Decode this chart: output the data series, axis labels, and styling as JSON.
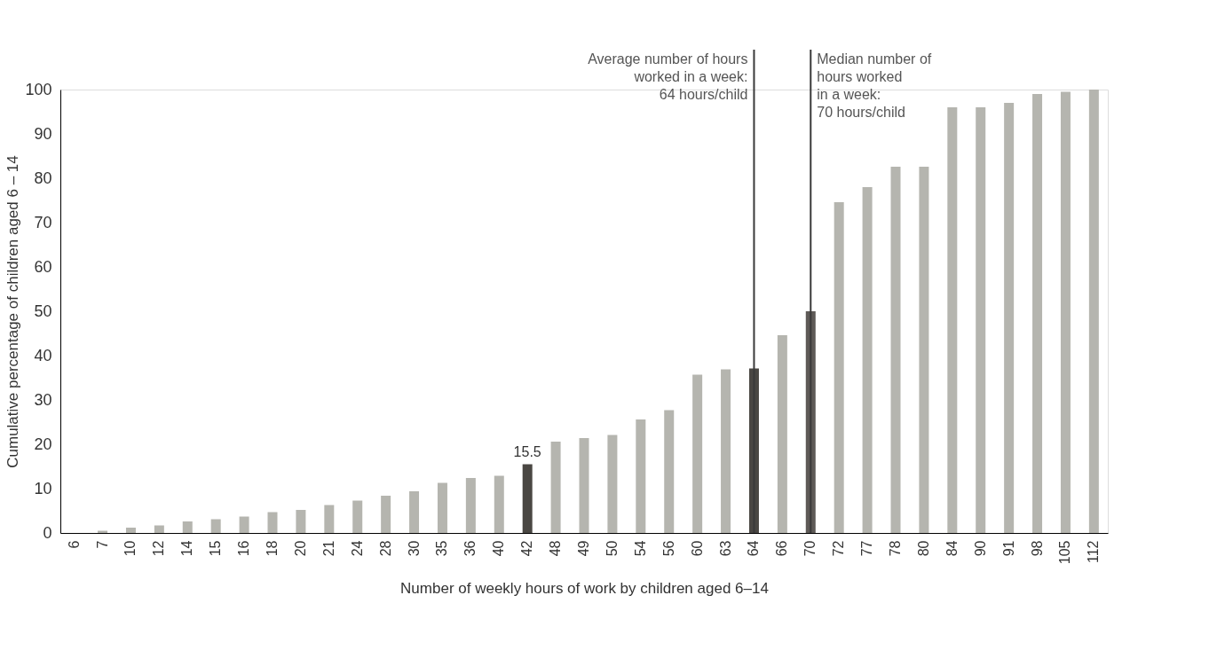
{
  "chart_data": {
    "type": "bar",
    "xlabel": "Number of weekly hours of work by children aged 6–14",
    "ylabel": "Cumulative percentage of children aged 6 – 14",
    "categories": [
      "6",
      "7",
      "10",
      "12",
      "14",
      "15",
      "16",
      "18",
      "20",
      "21",
      "24",
      "28",
      "30",
      "35",
      "36",
      "40",
      "42",
      "48",
      "49",
      "50",
      "54",
      "56",
      "60",
      "63",
      "64",
      "66",
      "70",
      "72",
      "77",
      "78",
      "80",
      "84",
      "90",
      "91",
      "98",
      "105",
      "112"
    ],
    "values": [
      null,
      0.5,
      1.2,
      1.7,
      2.6,
      3.1,
      3.7,
      4.7,
      5.2,
      6.3,
      7.3,
      8.4,
      9.4,
      11.3,
      12.4,
      12.9,
      15.5,
      20.6,
      21.4,
      22.1,
      25.6,
      27.7,
      35.7,
      36.9,
      37.1,
      44.6,
      50,
      74.6,
      78,
      82.6,
      82.6,
      96,
      96,
      97,
      99,
      99.5,
      100
    ],
    "colors": [
      "#b5b5af",
      "#b5b5af",
      "#b5b5af",
      "#b5b5af",
      "#b5b5af",
      "#b5b5af",
      "#b5b5af",
      "#b5b5af",
      "#b5b5af",
      "#b5b5af",
      "#b5b5af",
      "#b5b5af",
      "#b5b5af",
      "#b5b5af",
      "#b5b5af",
      "#b5b5af",
      "#4a4743",
      "#b5b5af",
      "#b5b5af",
      "#b5b5af",
      "#b5b5af",
      "#b5b5af",
      "#b5b5af",
      "#b5b5af",
      "#4a4743",
      "#b5b5af",
      "#5e5a57",
      "#b5b5af",
      "#b5b5af",
      "#b5b5af",
      "#b5b5af",
      "#b5b5af",
      "#b5b5af",
      "#b5b5af",
      "#b5b5af",
      "#b5b5af",
      "#b5b5af"
    ],
    "value_labels": [
      null,
      null,
      null,
      null,
      null,
      null,
      null,
      null,
      null,
      null,
      null,
      null,
      null,
      null,
      null,
      null,
      "15.5",
      null,
      null,
      null,
      null,
      null,
      null,
      null,
      null,
      null,
      null,
      null,
      null,
      null,
      null,
      null,
      null,
      null,
      null,
      null,
      null
    ],
    "ylim": [
      0,
      100
    ],
    "yticks": [
      0,
      10,
      20,
      30,
      40,
      50,
      60,
      70,
      80,
      90,
      100
    ],
    "grid": false,
    "ref_lines": [
      {
        "axis": "x",
        "value": "64",
        "label": "Average number of hours\nworked in a week:\n64 hours/child",
        "color": "#3a3a3a"
      },
      {
        "axis": "x",
        "value": "70",
        "label": "Median number of\nhours worked\nin a week:\n70 hours/child",
        "color": "#3a3a3a"
      }
    ]
  }
}
